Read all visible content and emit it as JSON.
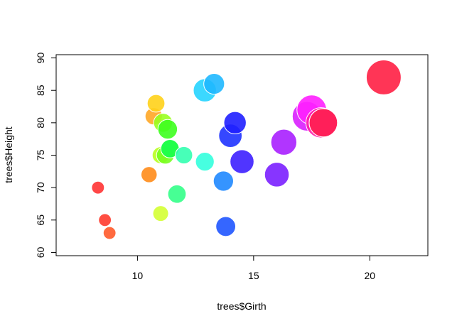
{
  "chart_data": {
    "type": "scatter",
    "title": "",
    "xlabel": "trees$Girth",
    "ylabel": "trees$Height",
    "xlim": [
      6.5,
      22.5
    ],
    "ylim": [
      59.5,
      90.5
    ],
    "xticks": [
      "10",
      "15",
      "20"
    ],
    "yticks": [
      "60",
      "65",
      "70",
      "75",
      "80",
      "85",
      "90"
    ],
    "grid": false,
    "legend": "none",
    "points": [
      {
        "x": 8.3,
        "y": 70,
        "size": 10.3,
        "color": "#FF3333"
      },
      {
        "x": 8.6,
        "y": 65,
        "size": 10.3,
        "color": "#FF3B2E"
      },
      {
        "x": 8.8,
        "y": 63,
        "size": 10.2,
        "color": "#FF5A2A"
      },
      {
        "x": 10.5,
        "y": 72,
        "size": 16.4,
        "color": "#FF8C1A"
      },
      {
        "x": 10.7,
        "y": 81,
        "size": 18.8,
        "color": "#FFA726"
      },
      {
        "x": 10.8,
        "y": 83,
        "size": 19.7,
        "color": "#FFD11A"
      },
      {
        "x": 11.0,
        "y": 66,
        "size": 15.6,
        "color": "#D4FF33"
      },
      {
        "x": 11.0,
        "y": 75,
        "size": 18.2,
        "color": "#B8FF1F"
      },
      {
        "x": 11.1,
        "y": 80,
        "size": 22.6,
        "color": "#99FF1F"
      },
      {
        "x": 11.2,
        "y": 75,
        "size": 19.9,
        "color": "#77FF1F"
      },
      {
        "x": 11.3,
        "y": 79,
        "size": 24.2,
        "color": "#3DFF1F"
      },
      {
        "x": 11.4,
        "y": 76,
        "size": 21.0,
        "color": "#1FFF2E"
      },
      {
        "x": 11.4,
        "y": 76,
        "size": 21.4,
        "color": "#1FFF4D"
      },
      {
        "x": 11.7,
        "y": 69,
        "size": 21.3,
        "color": "#33FF88"
      },
      {
        "x": 12.0,
        "y": 75,
        "size": 19.1,
        "color": "#33FFB0"
      },
      {
        "x": 12.9,
        "y": 74,
        "size": 22.2,
        "color": "#33FFDD"
      },
      {
        "x": 12.9,
        "y": 85,
        "size": 33.8,
        "color": "#26D4FF"
      },
      {
        "x": 13.3,
        "y": 86,
        "size": 27.4,
        "color": "#1FB8FF"
      },
      {
        "x": 13.7,
        "y": 71,
        "size": 25.7,
        "color": "#1F88FF"
      },
      {
        "x": 13.8,
        "y": 64,
        "size": 24.9,
        "color": "#1F55FF"
      },
      {
        "x": 14.0,
        "y": 78,
        "size": 34.5,
        "color": "#1F33FF"
      },
      {
        "x": 14.2,
        "y": 80,
        "size": 31.7,
        "color": "#1F1FFF"
      },
      {
        "x": 14.5,
        "y": 74,
        "size": 36.3,
        "color": "#3D1FFF"
      },
      {
        "x": 16.0,
        "y": 72,
        "size": 38.3,
        "color": "#7A1FFF"
      },
      {
        "x": 16.3,
        "y": 77,
        "size": 42.6,
        "color": "#A81FFF"
      },
      {
        "x": 17.3,
        "y": 81,
        "size": 55.4,
        "color": "#D91FFF"
      },
      {
        "x": 17.5,
        "y": 82,
        "size": 55.7,
        "color": "#FF1FFF"
      },
      {
        "x": 17.9,
        "y": 80,
        "size": 58.3,
        "color": "#FF1FAA"
      },
      {
        "x": 18.0,
        "y": 80,
        "size": 51.5,
        "color": "#FF1F77"
      },
      {
        "x": 18.0,
        "y": 80,
        "size": 51.0,
        "color": "#FF1F55"
      },
      {
        "x": 20.6,
        "y": 87,
        "size": 77.0,
        "color": "#FF1F44"
      }
    ]
  }
}
